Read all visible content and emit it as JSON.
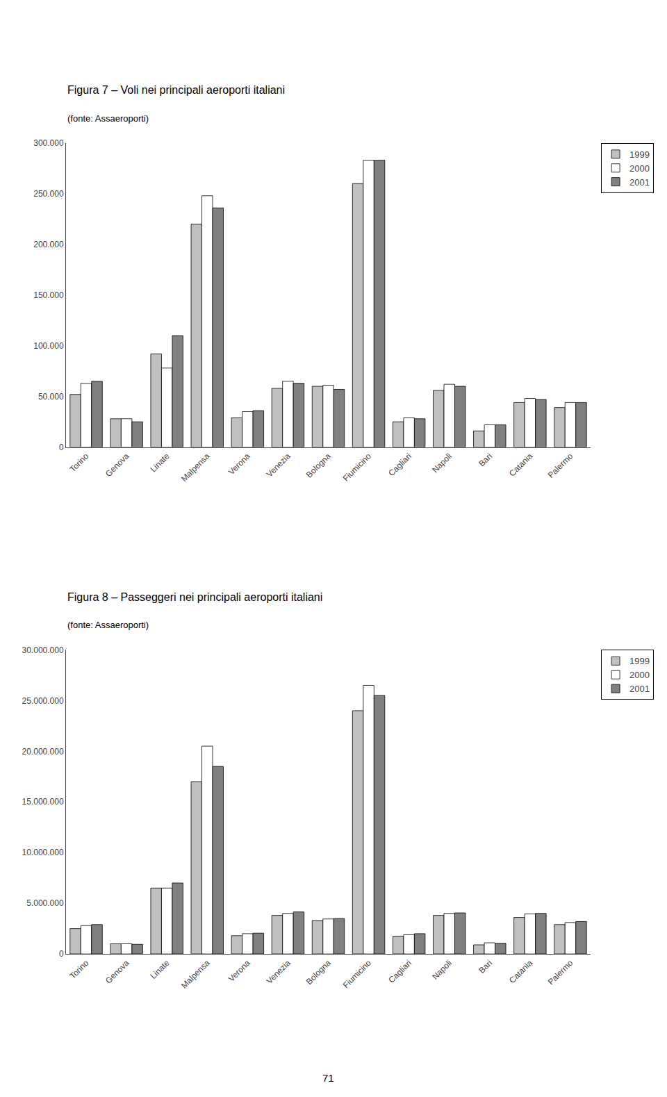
{
  "chart_data": [
    {
      "type": "bar",
      "title": "Figura 7 – Voli nei principali aeroporti italiani",
      "subtitle": "(fonte: Assaeroporti)",
      "categories": [
        "Torino",
        "Genova",
        "Linate",
        "Malpensa",
        "Verona",
        "Venezia",
        "Bologna",
        "Fiumicino",
        "Cagliari",
        "Napoli",
        "Bari",
        "Catania",
        "Palermo"
      ],
      "series": [
        {
          "name": "1999",
          "color": "#c0c0c0",
          "values": [
            52000,
            28000,
            92000,
            220000,
            29000,
            58000,
            60000,
            260000,
            25000,
            56000,
            16000,
            44000,
            39000
          ]
        },
        {
          "name": "2000",
          "color": "#ffffff",
          "values": [
            63000,
            28000,
            78000,
            248000,
            35000,
            65000,
            61000,
            283000,
            29000,
            62000,
            22000,
            48000,
            44000
          ]
        },
        {
          "name": "2001",
          "color": "#808080",
          "values": [
            65000,
            25000,
            110000,
            236000,
            36000,
            63000,
            57000,
            283000,
            28000,
            60000,
            22000,
            47000,
            44000
          ]
        }
      ],
      "ylim": [
        0,
        300000
      ],
      "yticks": [
        0,
        {
          "value": 50000,
          "label": "50.000"
        },
        {
          "value": 100000,
          "label": "100.000"
        },
        {
          "value": 150000,
          "label": "150.000"
        },
        {
          "value": 200000,
          "label": "200.000"
        },
        {
          "value": 250000,
          "label": "250.000"
        },
        {
          "value": 300000,
          "label": "300.000"
        }
      ],
      "grid": false,
      "legend": "upper right"
    },
    {
      "type": "bar",
      "title": "Figura 8 – Passeggeri nei principali aeroporti italiani",
      "subtitle": "(fonte: Assaeroporti)",
      "categories": [
        "Torino",
        "Genova",
        "Linate",
        "Malpensa",
        "Verona",
        "Venezia",
        "Bologna",
        "Fiumicino",
        "Cagliari",
        "Napoli",
        "Bari",
        "Catania",
        "Palermo"
      ],
      "series": [
        {
          "name": "1999",
          "color": "#c0c0c0",
          "values": [
            2500000,
            1000000,
            6500000,
            17000000,
            1800000,
            3800000,
            3300000,
            24000000,
            1750000,
            3800000,
            900000,
            3600000,
            2900000
          ]
        },
        {
          "name": "2000",
          "color": "#ffffff",
          "values": [
            2800000,
            1000000,
            6500000,
            20500000,
            2000000,
            4000000,
            3450000,
            26500000,
            1900000,
            4000000,
            1100000,
            3950000,
            3100000
          ]
        },
        {
          "name": "2001",
          "color": "#808080",
          "values": [
            2900000,
            950000,
            7000000,
            18500000,
            2050000,
            4150000,
            3500000,
            25500000,
            2000000,
            4050000,
            1050000,
            4000000,
            3200000
          ]
        }
      ],
      "ylim": [
        0,
        30000000
      ],
      "yticks": [
        0,
        {
          "value": 5000000,
          "label": "5.000.000"
        },
        {
          "value": 10000000,
          "label": "10.000.000"
        },
        {
          "value": 15000000,
          "label": "15.000.000"
        },
        {
          "value": 20000000,
          "label": "20.000.000"
        },
        {
          "value": 25000000,
          "label": "25.000.000"
        },
        {
          "value": 30000000,
          "label": "30.000.000"
        }
      ],
      "grid": false,
      "legend": "upper right",
      "annotations": [
        "71"
      ]
    }
  ]
}
